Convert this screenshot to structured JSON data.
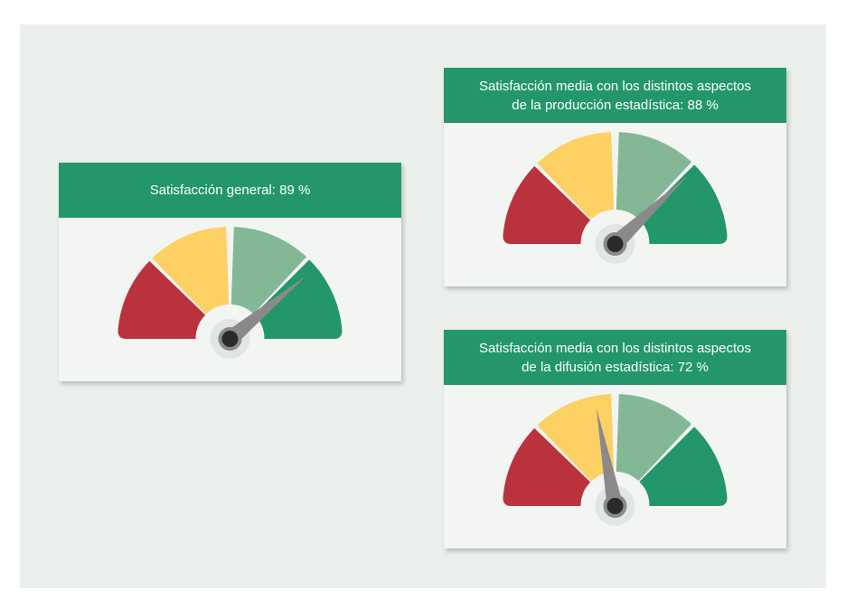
{
  "colors": {
    "header": "#23976a",
    "card": "#f2f5f2",
    "background": "#ecf0ec",
    "red": "#ba323c",
    "yellow": "#fcd063",
    "light_green": "#83b795",
    "green": "#23976a",
    "needle": "#8a8a8a",
    "hub": "#2a2a2a"
  },
  "cards": [
    {
      "title_lines": [
        "Satisfacción general: 89 %"
      ]
    },
    {
      "title_lines": [
        "Satisfacción media con los distintos aspectos",
        "de la producción estadística: 88 %"
      ]
    },
    {
      "title_lines": [
        "Satisfacción media con los distintos aspectos",
        "de la difusión estadística: 72 %"
      ]
    }
  ],
  "chart_data": [
    {
      "type": "gauge",
      "value": 89,
      "unit": "%",
      "bands": [
        "red",
        "yellow",
        "light_green",
        "green"
      ]
    },
    {
      "type": "gauge",
      "value": 88,
      "unit": "%",
      "bands": [
        "red",
        "yellow",
        "light_green",
        "green"
      ]
    },
    {
      "type": "gauge",
      "value": 72,
      "unit": "%",
      "bands": [
        "red",
        "yellow",
        "light_green",
        "green"
      ]
    }
  ]
}
